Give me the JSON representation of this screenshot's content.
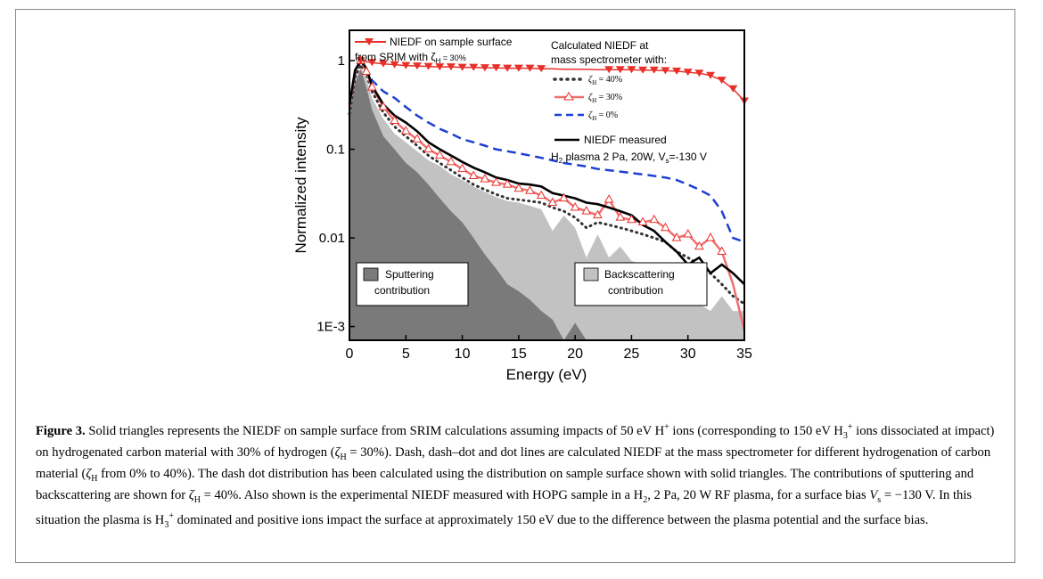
{
  "figure": {
    "label": "Figure 3.",
    "caption": [
      {
        "t": "Solid triangles represents the NIEDF on sample surface from SRIM calculations assuming impacts of 50 eV H"
      },
      {
        "sup": "+"
      },
      {
        "t": " ions (corresponding to 150 eV H"
      },
      {
        "sub": "3"
      },
      {
        "sup": "+"
      },
      {
        "t": " ions dissociated at impact) on hydrogenated carbon material with 30% of hydrogen ("
      },
      {
        "i": "ζ"
      },
      {
        "sub": "H"
      },
      {
        "t": " = 30%). Dash, dash–dot and dot lines are calculated NIEDF at the mass spectrometer for different hydrogenation of carbon material ("
      },
      {
        "i": "ζ"
      },
      {
        "sub": "H"
      },
      {
        "t": " from 0% to 40%). The dash dot distribution has been calculated using the distribution on sample surface shown with solid triangles. The contributions of sputtering and backscattering are shown for "
      },
      {
        "i": "ζ"
      },
      {
        "sub": "H"
      },
      {
        "t": " = 40%. Also shown is the experimental NIEDF measured with HOPG sample in a H"
      },
      {
        "sub": "2"
      },
      {
        "t": ", 2 Pa, 20 W RF plasma, for a surface bias "
      },
      {
        "i": "V"
      },
      {
        "sub": "s"
      },
      {
        "t": " = −130 V. In this situation the plasma is H"
      },
      {
        "sub": "3"
      },
      {
        "sup": "+"
      },
      {
        "t": " dominated and positive ions impact the surface at approximately 150 eV due to the difference between the plasma potential and the surface bias."
      }
    ]
  },
  "chart_data": {
    "type": "line",
    "xlabel": "Energy (eV)",
    "ylabel": "Normalized intensity",
    "xlim": [
      0,
      35
    ],
    "ylim": [
      0.0007,
      2.2
    ],
    "yscale": "log",
    "xticks": [
      0,
      5,
      10,
      15,
      20,
      25,
      30,
      35
    ],
    "yticks": [
      {
        "value": 0.001,
        "label": "1E-3"
      },
      {
        "value": 0.01,
        "label": "0.01"
      },
      {
        "value": 0.1,
        "label": "0.1"
      },
      {
        "value": 1,
        "label": "1"
      }
    ],
    "grid": false,
    "legend_top_left": {
      "line1": "NIEDF on sample surface",
      "line2": "from SRIM with ζ",
      "sub": "H",
      "line2_tail": " = 30%"
    },
    "legend_right_header": [
      "Calculated NIEDF at",
      "mass spectrometer with:"
    ],
    "legend_entries": [
      {
        "sym": "ζ",
        "sub": "H",
        "tail": " = 40%"
      },
      {
        "sym": "ζ",
        "sub": "H",
        "tail": " = 30%"
      },
      {
        "sym": "ζ",
        "sub": "H",
        "tail": " = 0%"
      }
    ],
    "legend_measured": {
      "line1": "NIEDF measured",
      "pre": "H",
      "sub2": "2",
      "mid": " plasma 2 Pa, 20W, V",
      "subs": "s",
      "tail": "=-130 V"
    },
    "area_labels": {
      "sputtering": [
        "Sputtering",
        "contribution"
      ],
      "backscattering": [
        "Backscattering",
        "contribution"
      ]
    },
    "colors": {
      "srim": "#e8302a",
      "zeta30": "#f07070",
      "zeta0": "#1f3fd0",
      "zeta40": "#333333",
      "measured": "#000000",
      "sputtering": "#7a7a7a",
      "backscattering": "#c2c2c2"
    },
    "series": [
      {
        "key": "srim",
        "x": [
          1,
          2,
          3,
          4,
          5,
          6,
          7,
          8,
          9,
          10,
          11,
          12,
          13,
          14,
          15,
          16,
          17,
          18,
          19,
          20,
          21,
          22,
          23,
          24,
          25,
          26,
          27,
          28,
          29,
          30,
          31,
          32,
          33,
          34,
          35
        ],
        "y": [
          1.0,
          0.95,
          0.92,
          0.9,
          0.88,
          0.87,
          0.86,
          0.85,
          0.85,
          0.84,
          0.84,
          0.83,
          0.83,
          0.82,
          0.82,
          0.82,
          0.81,
          0.81,
          0.8,
          0.8,
          0.8,
          0.79,
          0.79,
          0.79,
          0.79,
          0.78,
          0.78,
          0.77,
          0.76,
          0.74,
          0.72,
          0.68,
          0.6,
          0.48,
          0.35
        ]
      },
      {
        "key": "zeta30",
        "x": [
          0,
          0.5,
          1,
          1.5,
          2,
          3,
          4,
          5,
          6,
          7,
          8,
          9,
          10,
          11,
          12,
          13,
          14,
          15,
          16,
          17,
          18,
          19,
          20,
          21,
          22,
          23,
          24,
          25,
          26,
          27,
          28,
          29,
          30,
          31,
          32,
          33,
          34,
          35
        ],
        "y": [
          0.3,
          0.75,
          1.0,
          0.75,
          0.5,
          0.3,
          0.21,
          0.16,
          0.13,
          0.1,
          0.085,
          0.072,
          0.06,
          0.05,
          0.046,
          0.042,
          0.04,
          0.036,
          0.034,
          0.03,
          0.025,
          0.028,
          0.022,
          0.02,
          0.018,
          0.027,
          0.017,
          0.016,
          0.015,
          0.016,
          0.013,
          0.01,
          0.011,
          0.008,
          0.01,
          0.007,
          0.003,
          0.0009
        ]
      },
      {
        "key": "zeta0",
        "x": [
          0,
          0.5,
          1,
          1.5,
          2,
          3,
          4,
          5,
          6,
          7,
          8,
          9,
          10,
          11,
          12,
          13,
          14,
          15,
          16,
          17,
          18,
          19,
          20,
          21,
          22,
          23,
          24,
          25,
          26,
          27,
          28,
          29,
          30,
          31,
          32,
          33,
          34,
          35
        ],
        "y": [
          0.28,
          0.7,
          1.0,
          0.78,
          0.6,
          0.45,
          0.38,
          0.3,
          0.24,
          0.2,
          0.17,
          0.15,
          0.13,
          0.12,
          0.11,
          0.1,
          0.095,
          0.09,
          0.085,
          0.08,
          0.075,
          0.07,
          0.067,
          0.064,
          0.06,
          0.058,
          0.056,
          0.054,
          0.052,
          0.05,
          0.048,
          0.045,
          0.04,
          0.035,
          0.03,
          0.02,
          0.01,
          0.009
        ]
      },
      {
        "key": "zeta40",
        "x": [
          0,
          0.5,
          1,
          1.5,
          2,
          3,
          4,
          5,
          6,
          7,
          8,
          9,
          10,
          11,
          12,
          13,
          14,
          15,
          16,
          17,
          18,
          19,
          20,
          21,
          22,
          23,
          24,
          25,
          26,
          27,
          28,
          29,
          30,
          31,
          32,
          33,
          34,
          35
        ],
        "y": [
          0.25,
          0.65,
          0.9,
          0.7,
          0.45,
          0.26,
          0.18,
          0.14,
          0.11,
          0.085,
          0.07,
          0.058,
          0.048,
          0.04,
          0.035,
          0.031,
          0.028,
          0.027,
          0.026,
          0.025,
          0.022,
          0.02,
          0.017,
          0.013,
          0.015,
          0.014,
          0.013,
          0.012,
          0.011,
          0.01,
          0.009,
          0.007,
          0.006,
          0.005,
          0.004,
          0.003,
          0.0022,
          0.0018
        ]
      },
      {
        "key": "measured",
        "x": [
          0,
          0.5,
          1,
          1.5,
          2,
          3,
          4,
          5,
          6,
          7,
          8,
          9,
          10,
          11,
          12,
          13,
          14,
          15,
          16,
          17,
          18,
          19,
          20,
          21,
          22,
          23,
          24,
          25,
          26,
          27,
          28,
          29,
          30,
          31,
          32,
          33,
          34,
          35
        ],
        "y": [
          0.32,
          0.78,
          1.0,
          0.82,
          0.52,
          0.32,
          0.24,
          0.2,
          0.16,
          0.12,
          0.1,
          0.085,
          0.072,
          0.062,
          0.055,
          0.048,
          0.045,
          0.041,
          0.04,
          0.038,
          0.032,
          0.03,
          0.028,
          0.025,
          0.024,
          0.022,
          0.02,
          0.018,
          0.014,
          0.012,
          0.009,
          0.007,
          0.005,
          0.006,
          0.004,
          0.005,
          0.004,
          0.003
        ]
      }
    ],
    "areas": [
      {
        "key": "backscattering",
        "x": [
          0,
          0.5,
          1,
          1.5,
          2,
          3,
          4,
          5,
          6,
          7,
          8,
          9,
          10,
          11,
          12,
          13,
          14,
          15,
          16,
          17,
          18,
          19,
          20,
          21,
          22,
          23,
          24,
          25,
          26,
          27,
          28,
          29,
          30,
          31,
          32,
          33,
          34,
          35
        ],
        "y": [
          0.24,
          0.6,
          0.85,
          0.62,
          0.38,
          0.22,
          0.15,
          0.12,
          0.095,
          0.075,
          0.065,
          0.052,
          0.045,
          0.038,
          0.033,
          0.029,
          0.026,
          0.025,
          0.023,
          0.021,
          0.012,
          0.018,
          0.013,
          0.006,
          0.011,
          0.006,
          0.008,
          0.0055,
          0.005,
          0.0045,
          0.003,
          0.002,
          0.0025,
          0.0018,
          0.0015,
          0.0022,
          0.0015,
          0.0015
        ]
      },
      {
        "key": "sputtering",
        "x": [
          0,
          0.5,
          1,
          1.5,
          2,
          3,
          4,
          5,
          6,
          7,
          8,
          9,
          10,
          11,
          12,
          13,
          14,
          15,
          16,
          17,
          18,
          19,
          20,
          21,
          22,
          23,
          24,
          25,
          26,
          27,
          28,
          29,
          30,
          31,
          32,
          33,
          34,
          35
        ],
        "y": [
          0.22,
          0.55,
          0.8,
          0.5,
          0.28,
          0.14,
          0.1,
          0.07,
          0.055,
          0.04,
          0.028,
          0.02,
          0.015,
          0.01,
          0.0065,
          0.0045,
          0.003,
          0.0025,
          0.002,
          0.0015,
          0.0012,
          0.0007,
          0.0011,
          0.0007,
          0.0007,
          0.0007,
          0.0007,
          0.0007,
          0.0007,
          0.0007,
          0.0007,
          0.0007,
          0.0007,
          0.0007,
          0.0007,
          0.0007,
          0.0007,
          0.0007
        ]
      }
    ]
  }
}
